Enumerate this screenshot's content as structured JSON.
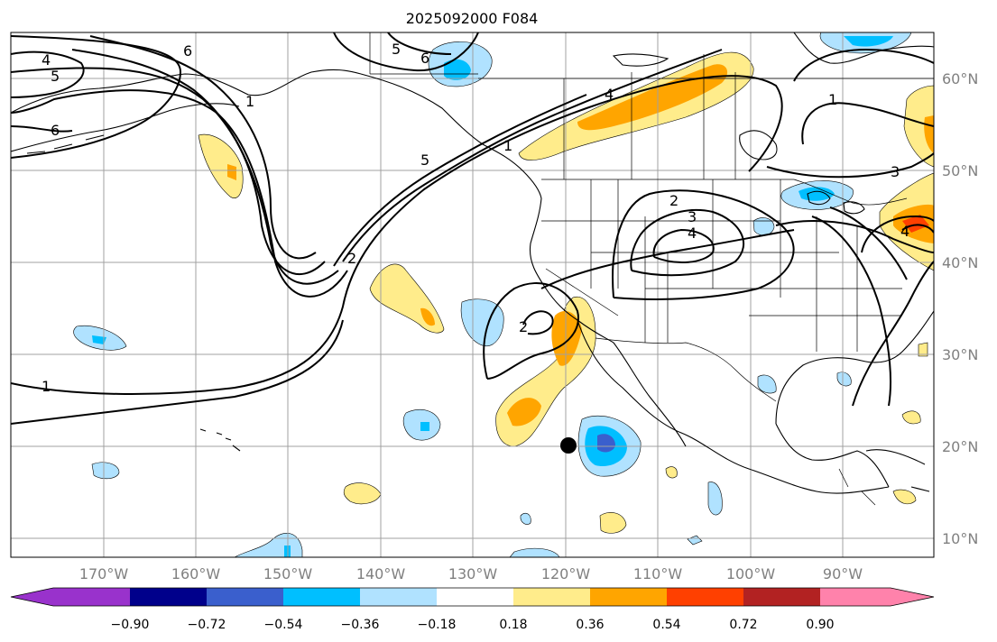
{
  "title": "2025092000 F084",
  "longitude_labels": [
    "170°W",
    "160°W",
    "150°W",
    "140°W",
    "130°W",
    "120°W",
    "110°W",
    "100°W",
    "90°W"
  ],
  "latitude_labels": [
    "60°N",
    "50°N",
    "40°N",
    "30°N",
    "20°N",
    "10°N"
  ],
  "colorbar": {
    "ticks": [
      "−0.90",
      "−0.72",
      "−0.54",
      "−0.36",
      "−0.18",
      "0.18",
      "0.36",
      "0.54",
      "0.72",
      "0.90"
    ],
    "colors": [
      "#9932cc",
      "#00008b",
      "#3a5fcd",
      "#00bfff",
      "#b0e2ff",
      "#ffffff",
      "#ffec8b",
      "#ffa500",
      "#ff4000",
      "#b22222",
      "#ff82ab"
    ]
  },
  "contour_labels": [
    "1",
    "2",
    "2",
    "2",
    "3",
    "3",
    "4",
    "4",
    "4",
    "5",
    "5",
    "6",
    "6",
    "6",
    "1",
    "1",
    "1",
    "5",
    "4"
  ],
  "colors": {
    "grid": "#a0a0a0",
    "coast": "#000000",
    "contour": "#000000",
    "marker": "#000000"
  }
}
